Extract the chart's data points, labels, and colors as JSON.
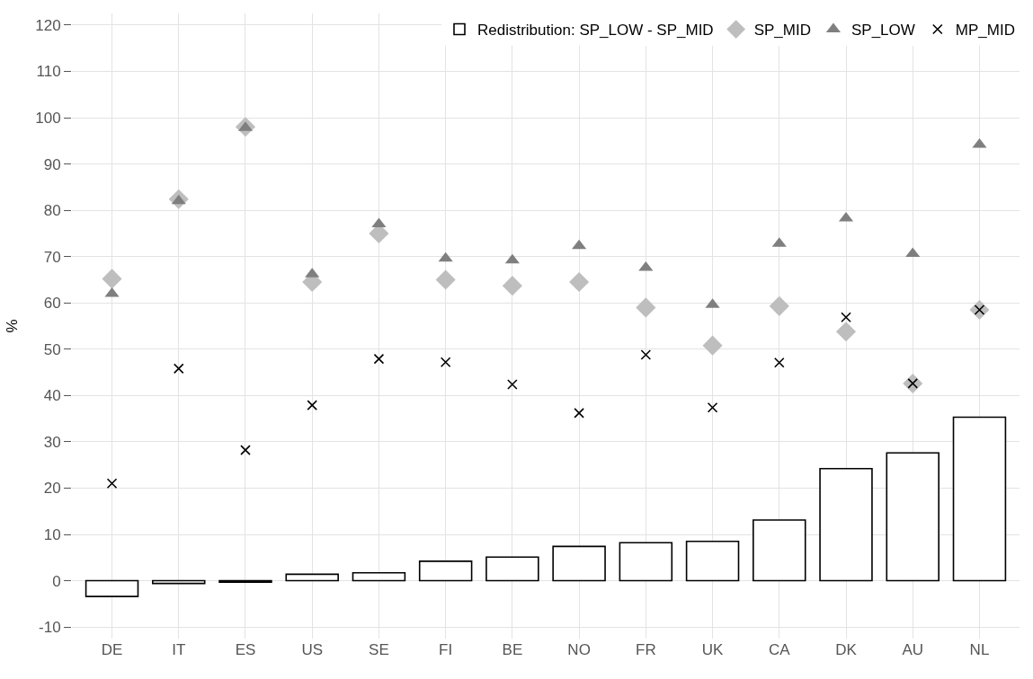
{
  "chart_data": {
    "type": "bar",
    "ylabel": "%",
    "categories": [
      "DE",
      "IT",
      "ES",
      "US",
      "SE",
      "FI",
      "BE",
      "NO",
      "FR",
      "UK",
      "CA",
      "DK",
      "AU",
      "NL"
    ],
    "series": [
      {
        "name": "Redistribution: SP_LOW - SP_MID",
        "color": "#ffffff",
        "values": [
          -3.4,
          -0.6,
          -0.3,
          1.4,
          1.7,
          4.2,
          5.1,
          7.4,
          8.2,
          8.5,
          13.1,
          24.2,
          27.6,
          35.3
        ]
      },
      {
        "name": "SP_MID",
        "type": "scatter",
        "marker": "diamond",
        "color": "#bebebe",
        "values": [
          65.2,
          82.4,
          98,
          64.5,
          75,
          65,
          63.7,
          64.5,
          59,
          50.8,
          59.3,
          53.8,
          42.6,
          58.5
        ]
      },
      {
        "name": "SP_LOW",
        "type": "scatter",
        "marker": "triangle",
        "color": "#7f7f7f",
        "values": [
          62,
          82,
          97.8,
          66.2,
          77,
          69.6,
          69.2,
          72.3,
          67.6,
          59.6,
          72.8,
          78.3,
          70.6,
          94.2
        ]
      },
      {
        "name": "MP_MID",
        "type": "scatter",
        "marker": "cross",
        "color": "#000000",
        "values": [
          21,
          45.8,
          28.2,
          37.9,
          47.9,
          47.2,
          42.4,
          36.2,
          48.8,
          37.4,
          47.1,
          56.9,
          42.6,
          58.5
        ]
      }
    ],
    "ylim": [
      -12.5,
      122.5
    ],
    "yticks": [
      -10,
      0,
      10,
      20,
      30,
      40,
      50,
      60,
      70,
      80,
      90,
      100,
      110,
      120
    ],
    "grid": true,
    "legend": "top"
  }
}
